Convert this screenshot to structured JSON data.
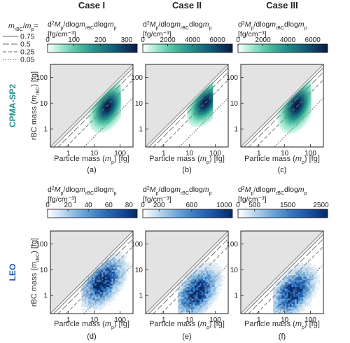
{
  "legend": {
    "title": "m_rBC/m_p =",
    "entries": [
      {
        "label": "0.75",
        "style": "solid"
      },
      {
        "label": "0.5",
        "style": "long-dash"
      },
      {
        "label": "0.25",
        "style": "dash"
      },
      {
        "label": "0.05",
        "style": "dotted"
      }
    ]
  },
  "rows": [
    {
      "label": "CPMA-SP2",
      "color": "#1f8f8f",
      "colormap": "teal"
    },
    {
      "label": "LEO",
      "color": "#1a56a8",
      "colormap": "blue"
    }
  ],
  "colorbar_title": "d²M_p/dlogm_rBC dlogm_p",
  "colorbar_units": "[fg/cm⁻³]",
  "xlabel": "Particle mass (m_p) [fg]",
  "ylabel": "rBC mass (m_rBC) [fg]",
  "chart_data": [
    {
      "type": "heatmap",
      "title": "Case I",
      "panel": "(a)",
      "row": 0,
      "colorbar_ticks": [
        0,
        100,
        200,
        300
      ],
      "colorbar_range": [
        0,
        340
      ],
      "x_ticks": [
        "1",
        "10",
        "100"
      ],
      "y_ticks": [
        "1",
        "10",
        "100"
      ],
      "xlim_log10": [
        -0.7,
        2.5
      ],
      "ylim_log10": [
        -0.7,
        2.5
      ],
      "scale": "log",
      "blob": {
        "x_min_log": 0.5,
        "x_max_log": 2.0,
        "peak_x_log": 1.5,
        "peak_y_log": 0.85,
        "y_spread_log": 0.55
      }
    },
    {
      "type": "heatmap",
      "title": "Case II",
      "panel": "(b)",
      "row": 0,
      "colorbar_ticks": [
        0,
        2000,
        4000,
        6000
      ],
      "colorbar_range": [
        0,
        7200
      ],
      "x_ticks": [
        "1",
        "10",
        "100"
      ],
      "y_ticks": [
        "1",
        "10",
        "100"
      ],
      "xlim_log10": [
        -0.7,
        2.5
      ],
      "ylim_log10": [
        -0.7,
        2.5
      ],
      "scale": "log",
      "blob": {
        "x_min_log": 0.9,
        "x_max_log": 1.9,
        "peak_x_log": 1.6,
        "peak_y_log": 1.0,
        "y_spread_log": 0.5
      }
    },
    {
      "type": "heatmap",
      "title": "Case III",
      "panel": "(c)",
      "row": 0,
      "colorbar_ticks": [
        0,
        2000,
        4000,
        6000
      ],
      "colorbar_range": [
        0,
        7200
      ],
      "x_ticks": [
        "1",
        "10",
        "100"
      ],
      "y_ticks": [
        "1",
        "10",
        "100"
      ],
      "xlim_log10": [
        -0.7,
        2.5
      ],
      "ylim_log10": [
        -0.7,
        2.5
      ],
      "scale": "log",
      "blob": {
        "x_min_log": 0.5,
        "x_max_log": 2.0,
        "peak_x_log": 1.45,
        "peak_y_log": 0.9,
        "y_spread_log": 0.6
      }
    },
    {
      "type": "heatmap",
      "title": "",
      "panel": "(d)",
      "row": 1,
      "colorbar_ticks": [
        0,
        20,
        40,
        60,
        80
      ],
      "colorbar_range": [
        0,
        88
      ],
      "x_ticks": [
        "1",
        "10",
        "100"
      ],
      "y_ticks": [
        "1",
        "10",
        "100"
      ],
      "xlim_log10": [
        -0.7,
        2.5
      ],
      "ylim_log10": [
        -0.7,
        2.5
      ],
      "scale": "log",
      "blob": {
        "x_min_log": 0.5,
        "x_max_log": 2.5,
        "peak_x_log": 1.3,
        "peak_y_log": 0.5,
        "y_spread_log": 0.6
      }
    },
    {
      "type": "heatmap",
      "title": "",
      "panel": "(e)",
      "row": 1,
      "colorbar_ticks": [
        0,
        200,
        600,
        1000
      ],
      "colorbar_range": [
        0,
        1100
      ],
      "x_ticks": [
        "1",
        "10",
        "100"
      ],
      "y_ticks": [
        "1",
        "10",
        "100"
      ],
      "xlim_log10": [
        -0.7,
        2.5
      ],
      "ylim_log10": [
        -0.7,
        2.5
      ],
      "scale": "log",
      "blob": {
        "x_min_log": 0.55,
        "x_max_log": 2.5,
        "peak_x_log": 1.25,
        "peak_y_log": 0.1,
        "y_spread_log": 0.6
      }
    },
    {
      "type": "heatmap",
      "title": "",
      "panel": "(f)",
      "row": 1,
      "colorbar_ticks": [
        0,
        500,
        1500,
        2500
      ],
      "colorbar_range": [
        0,
        2700
      ],
      "x_ticks": [
        "1",
        "10",
        "100"
      ],
      "y_ticks": [
        "1",
        "10",
        "100"
      ],
      "xlim_log10": [
        -0.7,
        2.5
      ],
      "ylim_log10": [
        -0.7,
        2.5
      ],
      "scale": "log",
      "blob": {
        "x_min_log": 0.55,
        "x_max_log": 2.5,
        "peak_x_log": 1.3,
        "peak_y_log": 0.1,
        "y_spread_log": 0.6
      }
    }
  ]
}
